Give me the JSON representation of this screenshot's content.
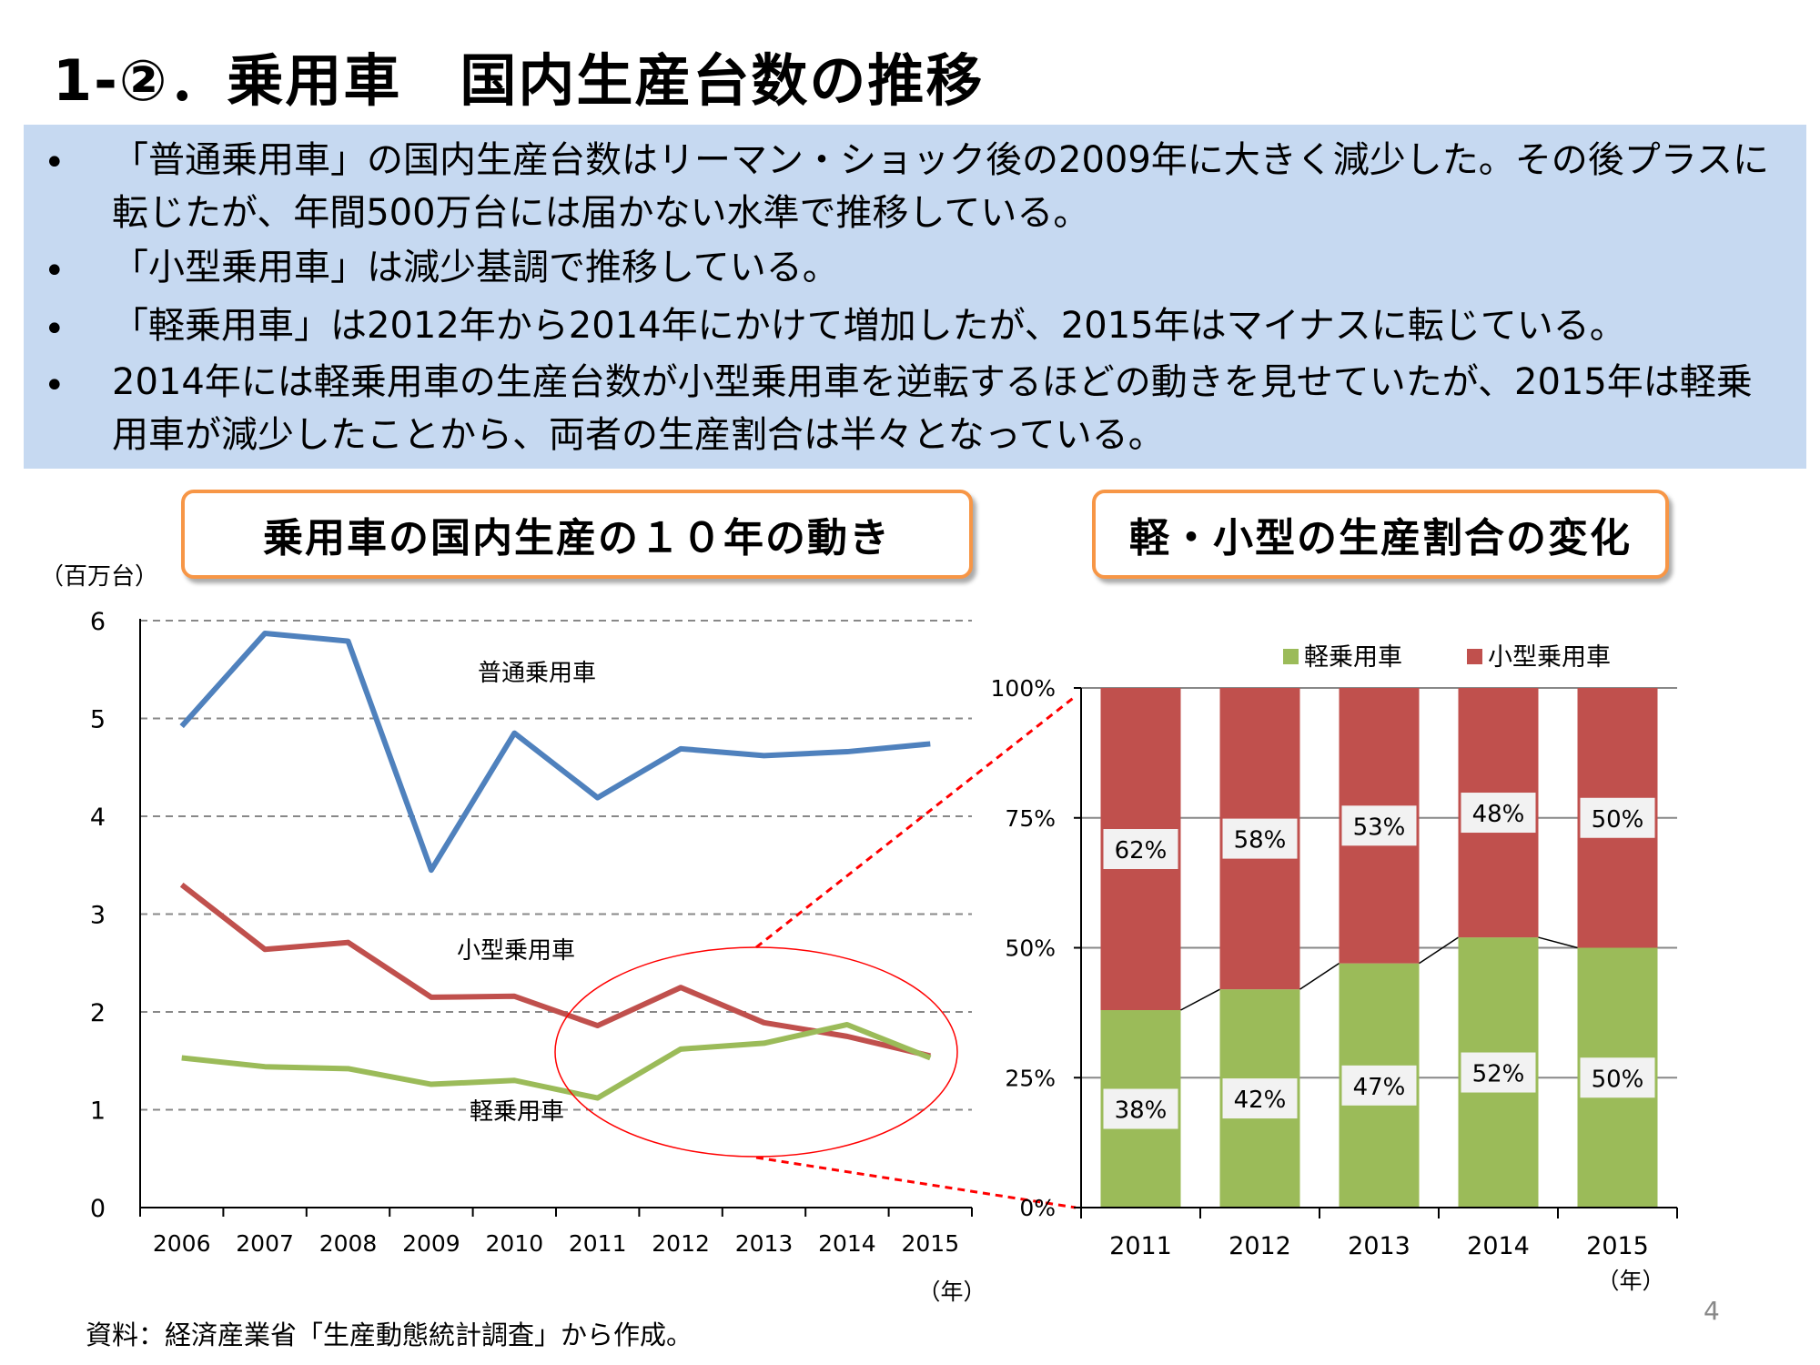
{
  "title": "1-②．乗用車　国内生産台数の推移",
  "summary": {
    "bullets": [
      "「普通乗用車」の国内生産台数はリーマン・ショック後の2009年に大きく減少した。その後プラスに転じたが、年間500万台には届かない水準で推移している。",
      "「小型乗用車」は減少基調で推移している。",
      "「軽乗用車」は2012年から2014年にかけて増加したが、2015年はマイナスに転じている。",
      "2014年には軽乗用車の生産台数が小型乗用車を逆転するほどの動きを見せていたが、2015年は軽乗用車が減少したことから、両者の生産割合は半々となっている。"
    ],
    "bullet_symbol": "•"
  },
  "left_header": "乗用車の国内生産の１０年の動き",
  "right_header": "軽・小型の生産割合の変化",
  "footnote": "資料：経済産業省「生産動態統計調査」から作成。",
  "page_number": "4",
  "chart_data": [
    {
      "type": "line",
      "ylabel": "（百万台）",
      "xlabel": "（年）",
      "ylim": [
        0,
        6
      ],
      "yticks": [
        "0",
        "1",
        "2",
        "3",
        "4",
        "5",
        "6"
      ],
      "grid": true,
      "categories": [
        "2006",
        "2007",
        "2008",
        "2009",
        "2010",
        "2011",
        "2012",
        "2013",
        "2014",
        "2015"
      ],
      "series": [
        {
          "name": "普通乗用車",
          "color": "#4F81BD",
          "values": [
            4.92,
            5.87,
            5.79,
            3.45,
            4.85,
            4.19,
            4.69,
            4.62,
            4.66,
            4.74
          ]
        },
        {
          "name": "小型乗用車",
          "color": "#C0504D",
          "values": [
            3.3,
            2.64,
            2.71,
            2.15,
            2.16,
            1.86,
            2.25,
            1.89,
            1.75,
            1.55
          ]
        },
        {
          "name": "軽乗用車",
          "color": "#9BBB59",
          "values": [
            1.53,
            1.44,
            1.42,
            1.26,
            1.3,
            1.12,
            1.62,
            1.68,
            1.87,
            1.53
          ]
        }
      ],
      "annotation_color": "#FF0000"
    },
    {
      "type": "bar",
      "stacked": true,
      "percent": true,
      "xlabel": "（年）",
      "ylim": [
        0,
        100
      ],
      "yticks": [
        "0%",
        "25%",
        "50%",
        "75%",
        "100%"
      ],
      "grid": true,
      "legend": "top",
      "categories": [
        "2011",
        "2012",
        "2013",
        "2014",
        "2015"
      ],
      "series": [
        {
          "name": "軽乗用車",
          "color": "#9BBB59",
          "values": [
            38,
            42,
            47,
            52,
            50
          ],
          "labels": [
            "38%",
            "42%",
            "47%",
            "52%",
            "50%"
          ]
        },
        {
          "name": "小型乗用車",
          "color": "#C0504D",
          "values": [
            62,
            58,
            53,
            48,
            50
          ],
          "labels": [
            "62%",
            "58%",
            "53%",
            "48%",
            "50%"
          ]
        }
      ]
    }
  ]
}
